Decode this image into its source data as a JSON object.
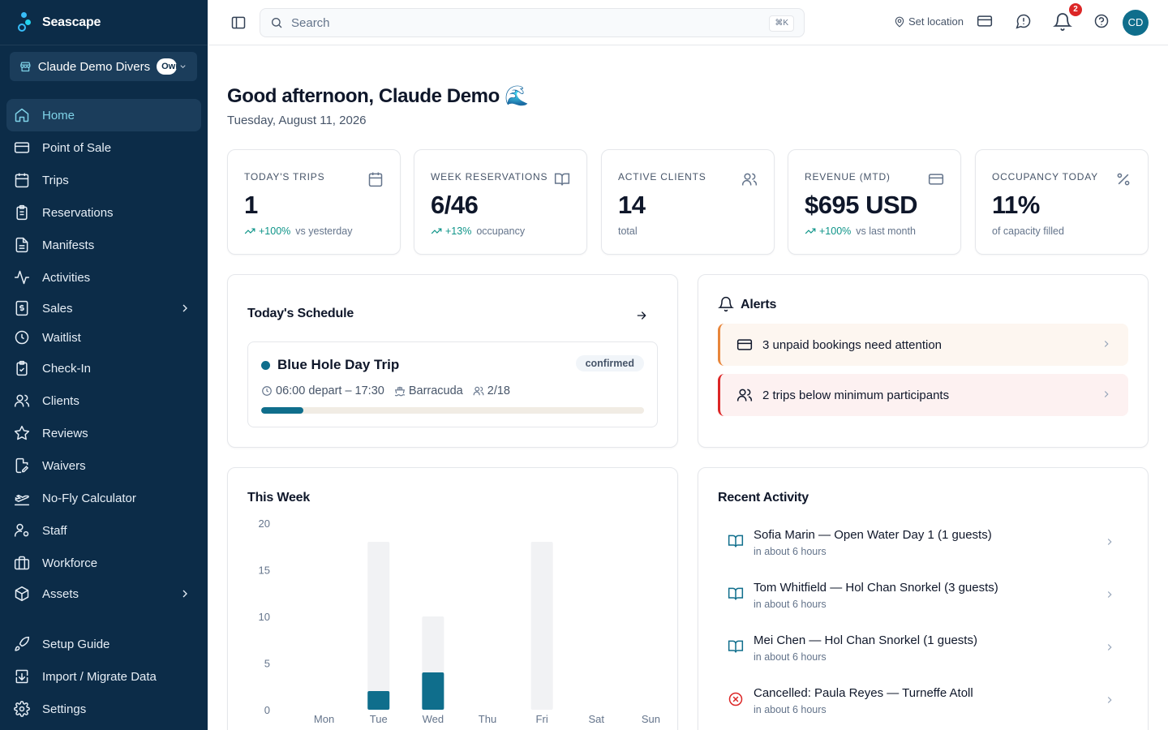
{
  "brand": {
    "name": "Seascape"
  },
  "org": {
    "name": "Claude Demo Divers",
    "badge": "Owner"
  },
  "nav": [
    {
      "label": "Home",
      "icon": "home-icon"
    },
    {
      "label": "Point of Sale",
      "icon": "credit-card-icon"
    },
    {
      "label": "Trips",
      "icon": "calendar-icon"
    },
    {
      "label": "Reservations",
      "icon": "clipboard-icon"
    },
    {
      "label": "Manifests",
      "icon": "document-icon"
    },
    {
      "label": "Activities",
      "icon": "activity-icon"
    },
    {
      "label": "Sales",
      "icon": "dollar-receipt-icon"
    },
    {
      "label": "Waitlist",
      "icon": "clock-icon"
    },
    {
      "label": "Check-In",
      "icon": "clipboard-check-icon"
    },
    {
      "label": "Clients",
      "icon": "users-icon"
    },
    {
      "label": "Reviews",
      "icon": "star-icon"
    },
    {
      "label": "Waivers",
      "icon": "file-edit-icon"
    },
    {
      "label": "No-Fly Calculator",
      "icon": "plane-icon"
    },
    {
      "label": "Staff",
      "icon": "user-cog-icon"
    },
    {
      "label": "Workforce",
      "icon": "briefcase-icon"
    },
    {
      "label": "Assets",
      "icon": "box-icon"
    },
    {
      "label": "Setup Guide",
      "icon": "rocket-icon"
    },
    {
      "label": "Import / Migrate Data",
      "icon": "import-icon"
    },
    {
      "label": "Settings",
      "icon": "gear-icon"
    }
  ],
  "topbar": {
    "search_placeholder": "Search",
    "shortcut": "⌘K",
    "location": "Set location",
    "notification_count": "2",
    "avatar_initials": "CD"
  },
  "greeting": {
    "title": "Good afternoon, Claude Demo 🌊",
    "date": "Tuesday, August 11, 2026"
  },
  "stats": [
    {
      "label": "TODAY'S TRIPS",
      "value": "1",
      "trend": "+100%",
      "sub": "vs yesterday",
      "icon": "calendar-icon"
    },
    {
      "label": "WEEK RESERVATIONS",
      "value": "6/46",
      "trend": "+13%",
      "sub": "occupancy",
      "icon": "book-open-icon"
    },
    {
      "label": "ACTIVE CLIENTS",
      "value": "14",
      "trend": "",
      "sub": "total",
      "icon": "users-icon"
    },
    {
      "label": "REVENUE (MTD)",
      "value": "$695 USD",
      "trend": "+100%",
      "sub": "vs last month",
      "icon": "credit-card-icon"
    },
    {
      "label": "OCCUPANCY TODAY",
      "value": "11%",
      "trend": "",
      "sub": "of capacity filled",
      "icon": "percent-icon"
    }
  ],
  "schedule": {
    "title": "Today's Schedule",
    "trip": {
      "name": "Blue Hole Day Trip",
      "status": "confirmed",
      "time": "06:00 depart – 17:30",
      "boat": "Barracuda",
      "capacity": "2/18",
      "fill_fraction": 0.111
    }
  },
  "alerts": {
    "title": "Alerts",
    "items": [
      {
        "text": "3 unpaid bookings need attention",
        "icon": "credit-card-icon",
        "level": "warning"
      },
      {
        "text": "2 trips below minimum participants",
        "icon": "users-icon",
        "level": "danger"
      }
    ]
  },
  "week": {
    "title": "This Week"
  },
  "chart_data": {
    "type": "bar",
    "categories": [
      "Mon",
      "Tue",
      "Wed",
      "Thu",
      "Fri",
      "Sat",
      "Sun"
    ],
    "series": [
      {
        "values": [
          0,
          18,
          10,
          0,
          18,
          0,
          0
        ]
      },
      {
        "values": [
          0,
          2,
          4,
          0,
          0,
          0,
          0
        ]
      }
    ],
    "yticks": [
      0,
      5,
      10,
      15,
      20
    ],
    "ylim": [
      0,
      20
    ],
    "colors": [
      "#f1f2f4",
      "#0f6e8c"
    ],
    "grid": false
  },
  "activity": {
    "title": "Recent Activity",
    "items": [
      {
        "title": "Sofia Marin — Open Water Day 1 (1 guests)",
        "time": "in about 6 hours",
        "icon": "book-open-icon"
      },
      {
        "title": "Tom Whitfield — Hol Chan Snorkel (3 guests)",
        "time": "in about 6 hours",
        "icon": "book-open-icon"
      },
      {
        "title": "Mei Chen — Hol Chan Snorkel (1 guests)",
        "time": "in about 6 hours",
        "icon": "book-open-icon"
      },
      {
        "title": "Cancelled: Paula Reyes — Turneffe Atoll",
        "time": "in about 6 hours",
        "icon": "x-circle-icon"
      }
    ]
  }
}
